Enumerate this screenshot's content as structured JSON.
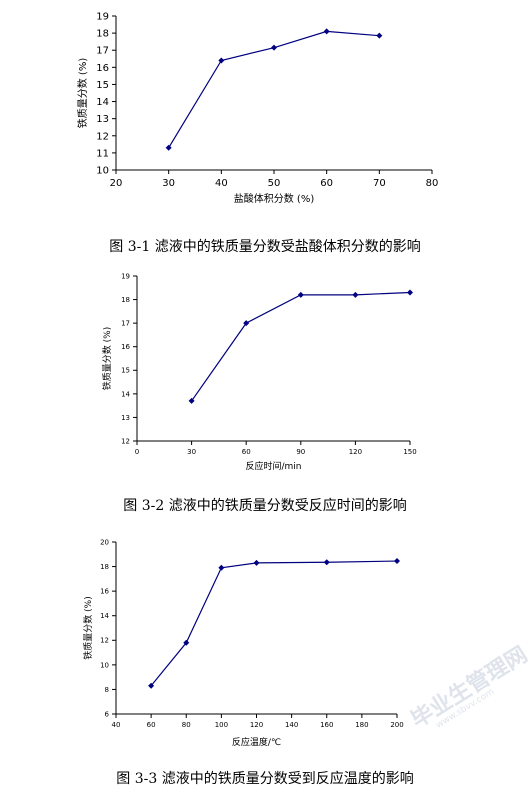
{
  "charts": [
    {
      "caption": "图 3-1 滤液中的铁质量分数受盐酸体积分数的影响",
      "chart_data": {
        "type": "line",
        "title": "",
        "xlabel": "盐酸体积分数 (%)",
        "ylabel": "铁质量分数 (%)",
        "xlim": [
          20,
          80
        ],
        "ylim": [
          10,
          19
        ],
        "xticks": [
          20,
          30,
          40,
          50,
          60,
          70,
          80
        ],
        "yticks": [
          10,
          11,
          12,
          13,
          14,
          15,
          16,
          17,
          18,
          19
        ],
        "grid": false,
        "series": [
          {
            "x": [
              30,
              40,
              50,
              60,
              70
            ],
            "values": [
              11.3,
              16.4,
              17.15,
              18.1,
              17.85
            ],
            "color": "#000080"
          }
        ]
      }
    },
    {
      "caption": "图 3-2 滤液中的铁质量分数受反应时间的影响",
      "chart_data": {
        "type": "line",
        "title": "",
        "xlabel": "反应时间/min",
        "ylabel": "铁质量分数 (%)",
        "xlim": [
          0,
          150
        ],
        "ylim": [
          12,
          19
        ],
        "xticks": [
          0,
          30,
          60,
          90,
          120,
          150
        ],
        "yticks": [
          12,
          13,
          14,
          15,
          16,
          17,
          18,
          19
        ],
        "grid": false,
        "series": [
          {
            "x": [
              30,
              60,
              90,
              120,
              150
            ],
            "values": [
              13.7,
              17.0,
              18.2,
              18.2,
              18.3
            ],
            "color": "#000080"
          }
        ]
      }
    },
    {
      "caption": "图 3-3 滤液中的铁质量分数受到反应温度的影响",
      "chart_data": {
        "type": "line",
        "title": "",
        "xlabel": "反应温度/℃",
        "ylabel": "铁质量分数 (%)",
        "xlim": [
          40,
          200
        ],
        "ylim": [
          6,
          20
        ],
        "xticks": [
          40,
          60,
          80,
          100,
          120,
          140,
          160,
          180,
          200
        ],
        "yticks": [
          6,
          8,
          10,
          12,
          14,
          16,
          18,
          20
        ],
        "grid": false,
        "series": [
          {
            "x": [
              60,
              80,
              100,
              120,
              160,
              200
            ],
            "values": [
              8.3,
              11.8,
              17.9,
              18.3,
              18.35,
              18.45
            ],
            "color": "#000080"
          }
        ]
      }
    }
  ],
  "watermark": {
    "text": "毕业生管理网",
    "url": "www.sbvv.com"
  }
}
